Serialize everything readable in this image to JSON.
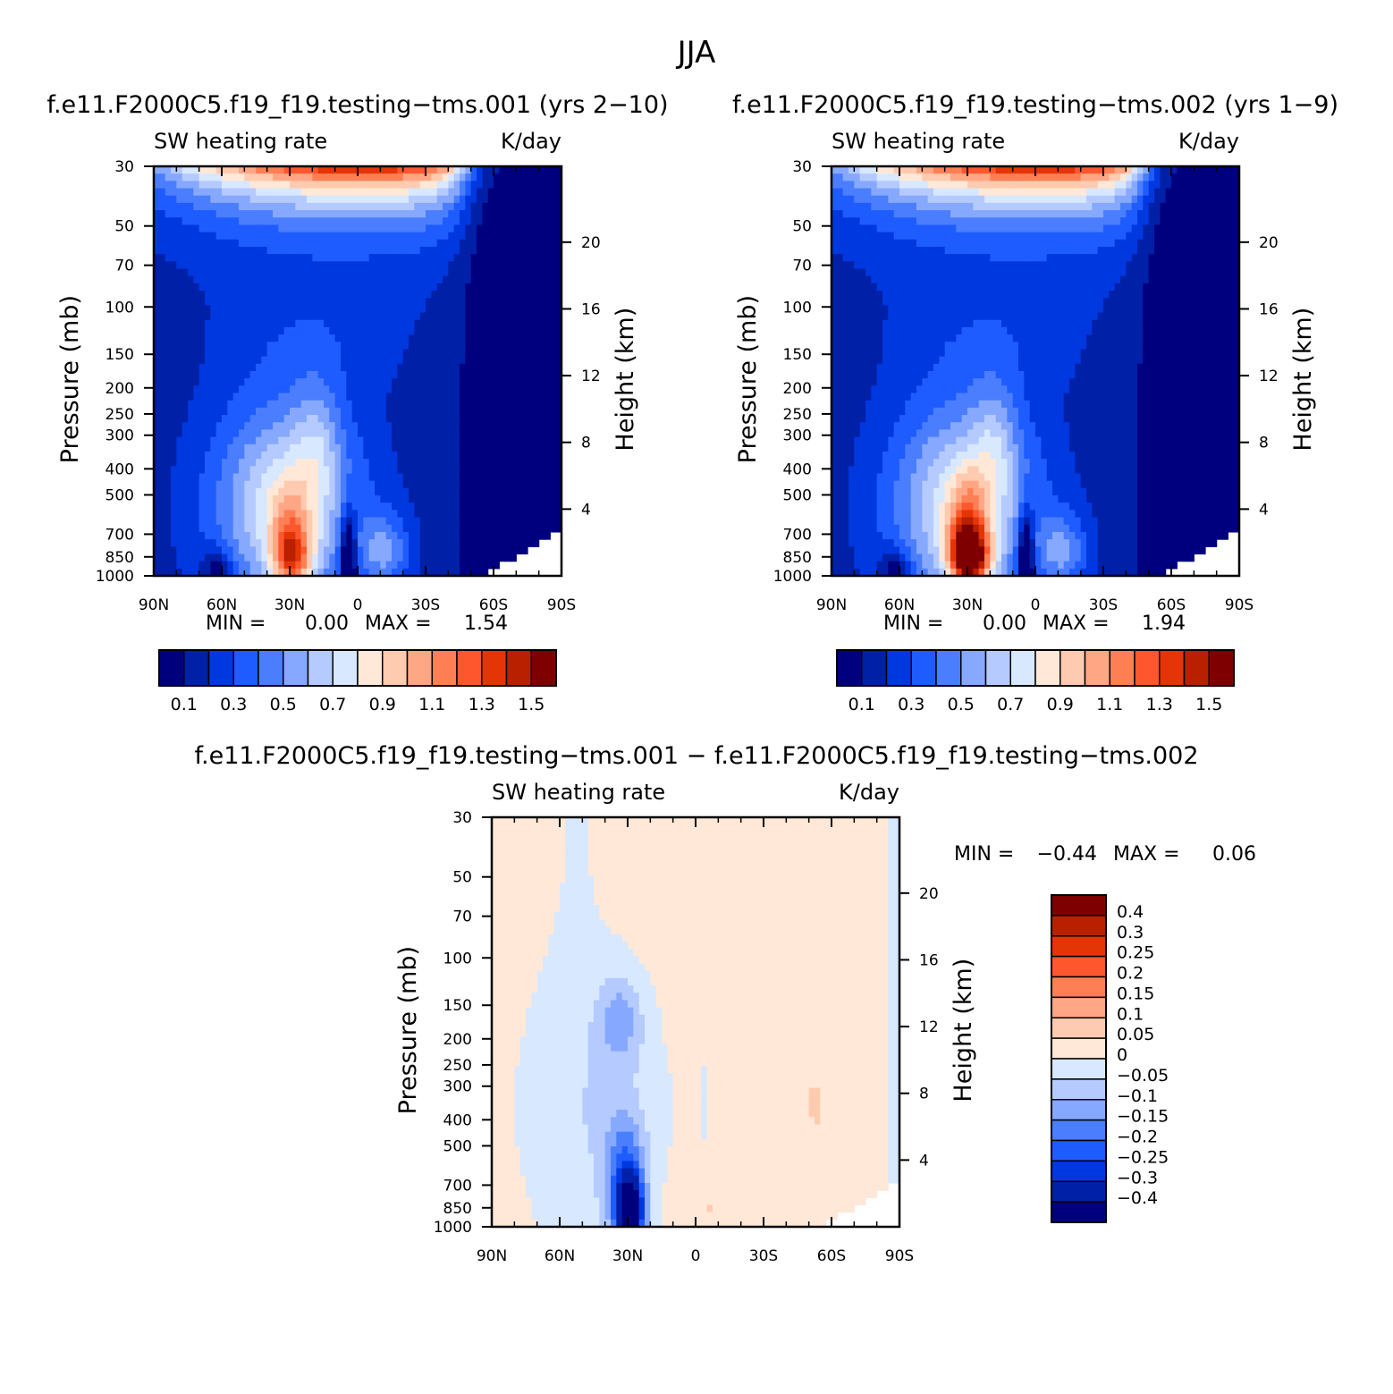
{
  "figure": {
    "title": "JJA",
    "diff_title": "f.e11.F2000C5.f19_f19.testing−tms.001  −  f.e11.F2000C5.f19_f19.testing−tms.002"
  },
  "colors": {
    "abs_levels": [
      "#00007f",
      "#0020a8",
      "#0038e0",
      "#1f5cff",
      "#4a7eff",
      "#86a9ff",
      "#b5caff",
      "#d7e8ff",
      "#ffe8d7",
      "#ffcbb0",
      "#ffa785",
      "#ff7f55",
      "#ff572d",
      "#e43507",
      "#b82000",
      "#7f0000"
    ],
    "diff_levels": [
      "#00007f",
      "#0020a8",
      "#0038e0",
      "#1f5cff",
      "#4a7eff",
      "#86a9ff",
      "#b5caff",
      "#d7e8ff",
      "#ffe8d7",
      "#ffcbb0",
      "#ffa785",
      "#ff7f55",
      "#ff572d",
      "#e43507",
      "#b82000",
      "#7f0000"
    ]
  },
  "chart_data": [
    {
      "id": "panel1",
      "type": "heatmap",
      "title": "f.e11.F2000C5.f19_f19.testing−tms.001 (yrs 2−10)",
      "left_label": "SW heating rate",
      "right_label": "K/day",
      "xlabel": "",
      "ylabel": "Pressure (mb)",
      "y2label": "Height (km)",
      "x_ticks": [
        "90N",
        "60N",
        "30N",
        "0",
        "30S",
        "60S",
        "90S"
      ],
      "x_values": [
        90,
        60,
        30,
        0,
        -30,
        -60,
        -90
      ],
      "y_ticks": [
        "30",
        "50",
        "70",
        "100",
        "150",
        "200",
        "250",
        "300",
        "400",
        "500",
        "700",
        "850",
        "1000"
      ],
      "y_values": [
        30,
        50,
        70,
        100,
        150,
        200,
        250,
        300,
        400,
        500,
        700,
        850,
        1000
      ],
      "y2_ticks": [
        "20",
        "16",
        "12",
        "8",
        "4"
      ],
      "y2_values": [
        20,
        16,
        12,
        8,
        4
      ],
      "ylim": [
        30,
        1000
      ],
      "xlim": [
        90,
        -90
      ],
      "min_label": "MIN =",
      "min_value": "0.00",
      "max_label": "MAX =",
      "max_value": "1.54",
      "min": 0.0,
      "max": 1.54,
      "levels": [
        0.1,
        0.2,
        0.3,
        0.4,
        0.5,
        0.6,
        0.7,
        0.8,
        0.9,
        1.0,
        1.1,
        1.2,
        1.3,
        1.4,
        1.5
      ],
      "colorbar_labels": [
        "0.1",
        "0.3",
        "0.5",
        "0.7",
        "0.9",
        "1.1",
        "1.3",
        "1.5"
      ],
      "colorbar_values": [
        0.1,
        0.3,
        0.5,
        0.7,
        0.9,
        1.1,
        1.3,
        1.5
      ]
    },
    {
      "id": "panel2",
      "type": "heatmap",
      "title": "f.e11.F2000C5.f19_f19.testing−tms.002 (yrs 1−9)",
      "left_label": "SW heating rate",
      "right_label": "K/day",
      "xlabel": "",
      "ylabel": "Pressure (mb)",
      "y2label": "Height (km)",
      "x_ticks": [
        "90N",
        "60N",
        "30N",
        "0",
        "30S",
        "60S",
        "90S"
      ],
      "x_values": [
        90,
        60,
        30,
        0,
        -30,
        -60,
        -90
      ],
      "y_ticks": [
        "30",
        "50",
        "70",
        "100",
        "150",
        "200",
        "250",
        "300",
        "400",
        "500",
        "700",
        "850",
        "1000"
      ],
      "y_values": [
        30,
        50,
        70,
        100,
        150,
        200,
        250,
        300,
        400,
        500,
        700,
        850,
        1000
      ],
      "y2_ticks": [
        "20",
        "16",
        "12",
        "8",
        "4"
      ],
      "y2_values": [
        20,
        16,
        12,
        8,
        4
      ],
      "ylim": [
        30,
        1000
      ],
      "xlim": [
        90,
        -90
      ],
      "min_label": "MIN =",
      "min_value": "0.00",
      "max_label": "MAX =",
      "max_value": "1.94",
      "min": 0.0,
      "max": 1.94,
      "levels": [
        0.1,
        0.2,
        0.3,
        0.4,
        0.5,
        0.6,
        0.7,
        0.8,
        0.9,
        1.0,
        1.1,
        1.2,
        1.3,
        1.4,
        1.5
      ],
      "colorbar_labels": [
        "0.1",
        "0.3",
        "0.5",
        "0.7",
        "0.9",
        "1.1",
        "1.3",
        "1.5"
      ],
      "colorbar_values": [
        0.1,
        0.3,
        0.5,
        0.7,
        0.9,
        1.1,
        1.3,
        1.5
      ]
    },
    {
      "id": "panel3",
      "type": "heatmap",
      "title": "",
      "left_label": "SW heating rate",
      "right_label": "K/day",
      "xlabel": "",
      "ylabel": "Pressure (mb)",
      "y2label": "Height (km)",
      "x_ticks": [
        "90N",
        "60N",
        "30N",
        "0",
        "30S",
        "60S",
        "90S"
      ],
      "x_values": [
        90,
        60,
        30,
        0,
        -30,
        -60,
        -90
      ],
      "y_ticks": [
        "30",
        "50",
        "70",
        "100",
        "150",
        "200",
        "250",
        "300",
        "400",
        "500",
        "700",
        "850",
        "1000"
      ],
      "y_values": [
        30,
        50,
        70,
        100,
        150,
        200,
        250,
        300,
        400,
        500,
        700,
        850,
        1000
      ],
      "y2_ticks": [
        "20",
        "16",
        "12",
        "8",
        "4"
      ],
      "y2_values": [
        20,
        16,
        12,
        8,
        4
      ],
      "ylim": [
        30,
        1000
      ],
      "xlim": [
        90,
        -90
      ],
      "min_label": "MIN =",
      "min_value": "−0.44",
      "max_label": "MAX =",
      "max_value": "0.06",
      "min": -0.44,
      "max": 0.06,
      "levels": [
        -0.4,
        -0.3,
        -0.25,
        -0.2,
        -0.15,
        -0.1,
        -0.05,
        0,
        0.05,
        0.1,
        0.15,
        0.2,
        0.25,
        0.3,
        0.4
      ],
      "colorbar_labels": [
        "0.4",
        "0.3",
        "0.25",
        "0.2",
        "0.15",
        "0.1",
        "0.05",
        "0",
        "−0.05",
        "−0.1",
        "−0.15",
        "−0.2",
        "−0.25",
        "−0.3",
        "−0.4"
      ],
      "colorbar_values": [
        0.4,
        0.3,
        0.25,
        0.2,
        0.15,
        0.1,
        0.05,
        0,
        -0.05,
        -0.1,
        -0.15,
        -0.2,
        -0.25,
        -0.3,
        -0.4
      ]
    }
  ]
}
